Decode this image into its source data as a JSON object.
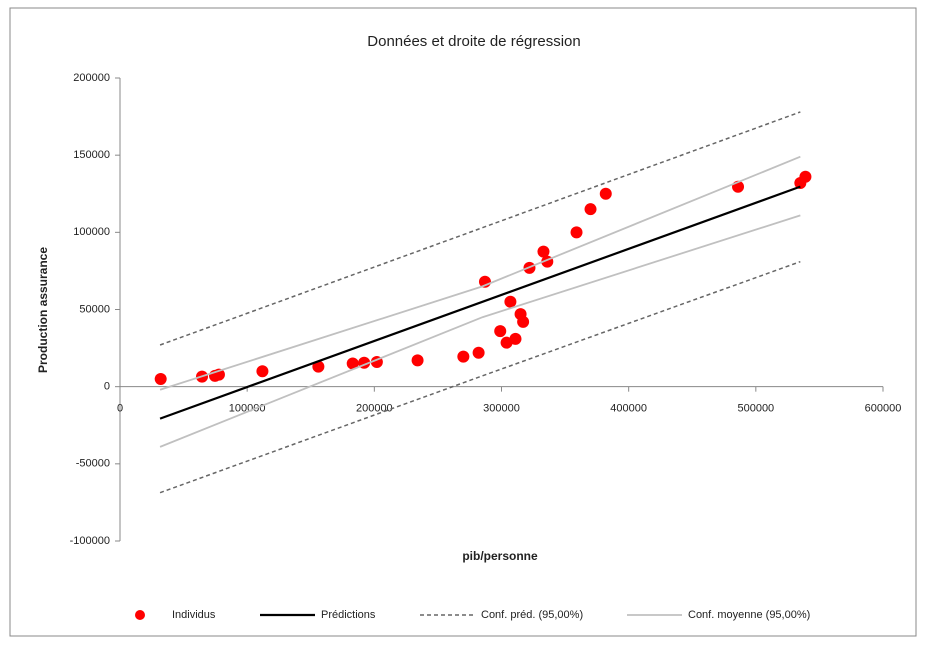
{
  "chart_data": {
    "type": "scatter",
    "title": "Données et droite de régression",
    "x_label": "pib/personne",
    "y_label": "Production assurance",
    "xlim": [
      0,
      600000
    ],
    "xticks": [
      0,
      100000,
      200000,
      300000,
      400000,
      500000,
      600000
    ],
    "ylim": [
      -100000,
      200000
    ],
    "yticks": [
      -100000,
      -50000,
      0,
      50000,
      100000,
      150000,
      200000
    ],
    "series": [
      {
        "name": "Individus",
        "color": "#ff0000",
        "style": "marker",
        "x": [
          32000,
          64500,
          74700,
          77800,
          112000,
          156000,
          183000,
          192000,
          202000,
          234000,
          270000,
          282000,
          287000,
          299000,
          304000,
          307000,
          311000,
          315000,
          317000,
          322000,
          333000,
          336000,
          359000,
          370000,
          382000,
          486000,
          535000,
          539000
        ],
        "values": [
          5000,
          6500,
          7000,
          7800,
          10000,
          13000,
          15000,
          15500,
          16000,
          17000,
          19500,
          22000,
          68000,
          36000,
          28500,
          55000,
          31000,
          47000,
          42000,
          77000,
          87500,
          81000,
          100000,
          115000,
          125000,
          129500,
          132000,
          136000
        ]
      },
      {
        "name": "Prédictions",
        "color": "#000000",
        "style": "line",
        "x": [
          31500,
          535000
        ],
        "values": [
          -20700,
          129600
        ]
      },
      {
        "name": "Conf. préd. (95,00%)",
        "color": "#666666",
        "style": "dashed",
        "x": [
          31500,
          285000,
          535000
        ],
        "values": [
          27000,
          103000,
          178000
        ]
      },
      {
        "name": "Conf. préd. (95,00%)",
        "color": "#666666",
        "style": "dashed",
        "legend": false,
        "x": [
          31500,
          285000,
          535000
        ],
        "values": [
          -68700,
          7000,
          81000
        ]
      },
      {
        "name": "Conf. moyenne (95,00%)",
        "color": "#c0c0c0",
        "style": "light",
        "x": [
          31500,
          285000,
          535000
        ],
        "values": [
          -2000,
          65000,
          149000
        ]
      },
      {
        "name": "Conf. moyenne (95,00%)",
        "color": "#c0c0c0",
        "style": "light",
        "legend": false,
        "x": [
          31500,
          285000,
          535000
        ],
        "values": [
          -39000,
          45000,
          111000
        ]
      }
    ]
  }
}
